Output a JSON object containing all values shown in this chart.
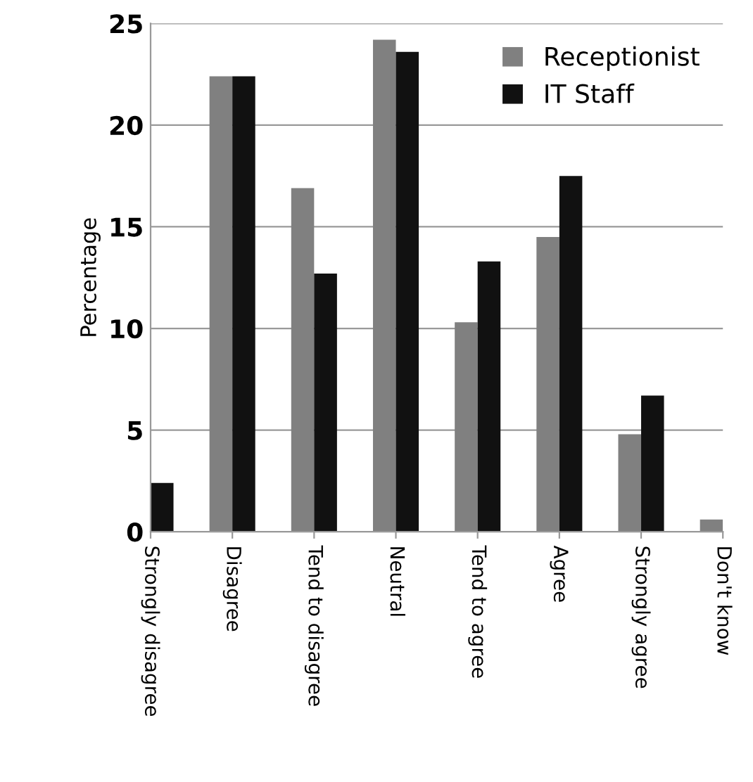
{
  "chart_data": {
    "type": "bar",
    "ylabel": "Percentage",
    "categories": [
      "Strongly disagree",
      "Disagree",
      "Tend to disagree",
      "Neutral",
      "Tend to agree",
      "Agree",
      "Strongly agree",
      "Don't know"
    ],
    "series": [
      {
        "name": "Receptionist",
        "color": "#808080",
        "values": [
          null,
          22.4,
          16.9,
          24.2,
          10.3,
          14.5,
          4.8,
          0.6
        ]
      },
      {
        "name": "IT Staff",
        "color": "#111111",
        "values": [
          2.4,
          22.4,
          12.7,
          23.6,
          13.3,
          17.5,
          6.7,
          null
        ]
      }
    ],
    "ylim": [
      0,
      25
    ],
    "yticks": [
      0,
      5,
      10,
      15,
      20,
      25
    ],
    "grid": "y",
    "legend": "top right"
  }
}
